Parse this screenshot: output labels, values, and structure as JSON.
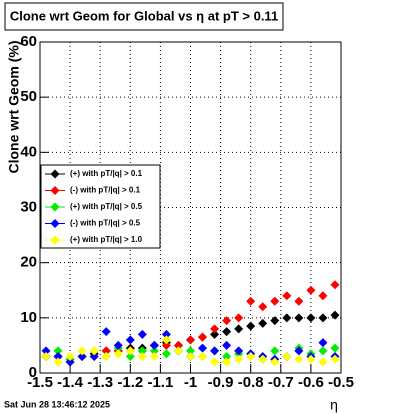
{
  "chart_data": {
    "type": "scatter",
    "title": "Clone wrt Geom for Global vs   η  at pT > 0.11",
    "y_label": "Clone wrt Geom (%)",
    "x_label": "η",
    "footer": "Sat Jun 28 13:46:12 2025",
    "xlim": [
      -1.5,
      -0.5
    ],
    "ylim": [
      0,
      60
    ],
    "xticks": [
      -1.5,
      -1.4,
      -1.3,
      -1.2,
      -1.1,
      -1,
      -0.9,
      -0.8,
      -0.7,
      -0.6,
      -0.5
    ],
    "yticks": [
      0,
      10,
      20,
      30,
      40,
      50,
      60
    ],
    "grid": true,
    "x": [
      -1.48,
      -1.44,
      -1.4,
      -1.36,
      -1.32,
      -1.28,
      -1.24,
      -1.2,
      -1.16,
      -1.12,
      -1.08,
      -1.04,
      -1.0,
      -0.96,
      -0.92,
      -0.88,
      -0.84,
      -0.8,
      -0.76,
      -0.72,
      -0.68,
      -0.64,
      -0.6,
      -0.56,
      -0.52
    ],
    "series": [
      {
        "name": "(+) with pT/|q| > 0.1",
        "color": "#000000",
        "values": [
          3,
          3,
          2.5,
          3,
          3.5,
          4,
          4,
          4.5,
          4.5,
          5,
          5.5,
          5,
          6,
          6.5,
          7,
          7.5,
          8,
          8.5,
          9,
          9.5,
          10,
          10,
          10,
          10,
          10.5
        ]
      },
      {
        "name": "(-) with pT/|q| > 0.1",
        "color": "#ff0000",
        "values": [
          3,
          3,
          2,
          3,
          3,
          4,
          4,
          4,
          4,
          5,
          5,
          5,
          6,
          6.5,
          8,
          9.5,
          10,
          13,
          12,
          13,
          14,
          13,
          15,
          14,
          16
        ]
      },
      {
        "name": "(+) with pT/|q| > 0.5",
        "color": "#00ee00",
        "values": [
          3,
          4,
          2.5,
          3,
          4,
          3,
          4.5,
          3,
          4,
          4,
          3.5,
          4,
          4,
          3,
          4,
          3,
          3.5,
          3,
          2.5,
          4,
          3,
          4.5,
          3.5,
          4,
          4.5
        ]
      },
      {
        "name": "(-) with pT/|q| > 0.5",
        "color": "#0000ff",
        "values": [
          4,
          3,
          2,
          3,
          3,
          7.5,
          5,
          6,
          7,
          5,
          7,
          4,
          3,
          4.5,
          4,
          5,
          4,
          3.5,
          3,
          2.5,
          3,
          4,
          3,
          5.5,
          3
        ]
      },
      {
        "name": "(+) with pT/|q| > 1.0",
        "color": "#ffff00",
        "values": [
          3,
          2,
          3,
          4,
          4,
          3,
          3.5,
          4,
          3,
          3,
          6,
          4,
          3,
          3,
          2,
          2,
          2.5,
          3,
          2.5,
          2,
          3,
          2.5,
          2.5,
          2,
          2.5
        ]
      }
    ]
  }
}
